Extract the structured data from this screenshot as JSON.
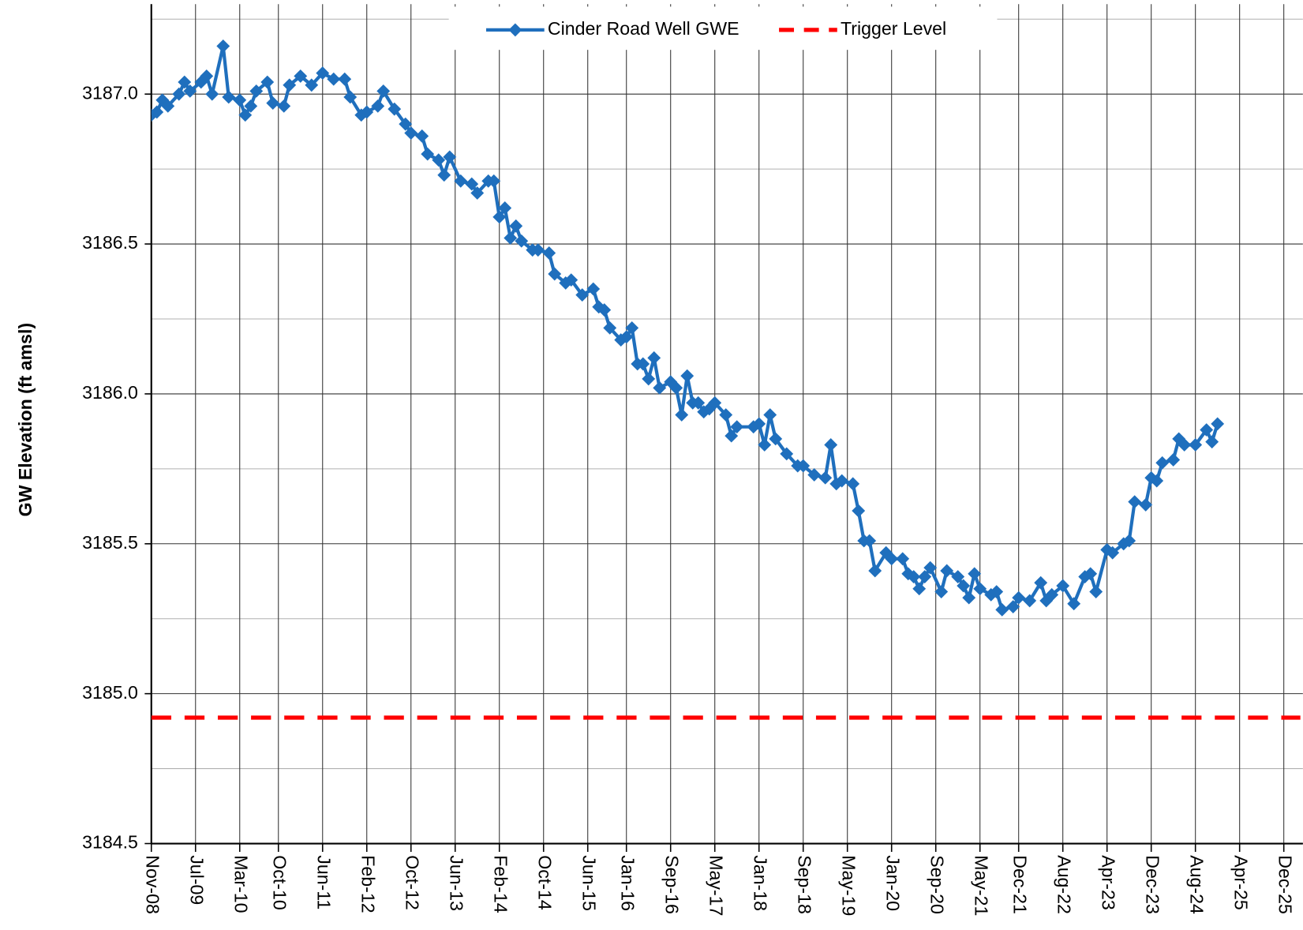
{
  "chart_data": {
    "type": "line",
    "y_label": "GW Elevation (ft amsl)",
    "ylim": [
      3184.5,
      3187.3
    ],
    "yticks": [
      {
        "value": 3184.5,
        "label": "3184.5"
      },
      {
        "value": 3185,
        "label": "3185.0"
      },
      {
        "value": 3185.5,
        "label": "3185.5"
      },
      {
        "value": 3186,
        "label": "3186.0"
      },
      {
        "value": 3186.5,
        "label": "3186.5"
      },
      {
        "value": 3187,
        "label": "3187.0"
      }
    ],
    "minor_yticks": [
      3184.75,
      3185.25,
      3185.75,
      3186.25,
      3186.75,
      3187.25
    ],
    "xlim": [
      "2008-11",
      "2026-03"
    ],
    "xticks": [
      {
        "value": "2008-11",
        "label": "Nov-08"
      },
      {
        "value": "2009-07",
        "label": "Jul-09"
      },
      {
        "value": "2010-03",
        "label": "Mar-10"
      },
      {
        "value": "2010-10",
        "label": "Oct-10"
      },
      {
        "value": "2011-06",
        "label": "Jun-11"
      },
      {
        "value": "2012-02",
        "label": "Feb-12"
      },
      {
        "value": "2012-10",
        "label": "Oct-12"
      },
      {
        "value": "2013-06",
        "label": "Jun-13"
      },
      {
        "value": "2014-02",
        "label": "Feb-14"
      },
      {
        "value": "2014-10",
        "label": "Oct-14"
      },
      {
        "value": "2015-06",
        "label": "Jun-15"
      },
      {
        "value": "2016-01",
        "label": "Jan-16"
      },
      {
        "value": "2016-09",
        "label": "Sep-16"
      },
      {
        "value": "2017-05",
        "label": "May-17"
      },
      {
        "value": "2018-01",
        "label": "Jan-18"
      },
      {
        "value": "2018-09",
        "label": "Sep-18"
      },
      {
        "value": "2019-05",
        "label": "May-19"
      },
      {
        "value": "2020-01",
        "label": "Jan-20"
      },
      {
        "value": "2020-09",
        "label": "Sep-20"
      },
      {
        "value": "2021-05",
        "label": "May-21"
      },
      {
        "value": "2021-12",
        "label": "Dec-21"
      },
      {
        "value": "2022-08",
        "label": "Aug-22"
      },
      {
        "value": "2023-04",
        "label": "Apr-23"
      },
      {
        "value": "2023-12",
        "label": "Dec-23"
      },
      {
        "value": "2024-08",
        "label": "Aug-24"
      },
      {
        "value": "2025-04",
        "label": "Apr-25"
      },
      {
        "value": "2025-12",
        "label": "Dec-25"
      }
    ],
    "grid": true,
    "legend": "top",
    "series": [
      {
        "name": "Cinder Road Well GWE",
        "color": "#1f6fbd",
        "marker": "diamond",
        "x": [
          "2008-11",
          "2008-12",
          "2009-01",
          "2009-02",
          "2009-04",
          "2009-05",
          "2009-06",
          "2009-08",
          "2009-09",
          "2009-10",
          "2009-12",
          "2010-01",
          "2010-03",
          "2010-04",
          "2010-05",
          "2010-06",
          "2010-08",
          "2010-09",
          "2010-11",
          "2010-12",
          "2011-02",
          "2011-04",
          "2011-06",
          "2011-08",
          "2011-10",
          "2011-11",
          "2012-01",
          "2012-02",
          "2012-04",
          "2012-05",
          "2012-07",
          "2012-09",
          "2012-10",
          "2012-12",
          "2013-01",
          "2013-03",
          "2013-04",
          "2013-05",
          "2013-07",
          "2013-09",
          "2013-10",
          "2013-12",
          "2014-01",
          "2014-02",
          "2014-03",
          "2014-04",
          "2014-05",
          "2014-06",
          "2014-08",
          "2014-09",
          "2014-11",
          "2014-12",
          "2015-02",
          "2015-03",
          "2015-05",
          "2015-07",
          "2015-08",
          "2015-09",
          "2015-10",
          "2015-12",
          "2016-01",
          "2016-02",
          "2016-03",
          "2016-04",
          "2016-05",
          "2016-06",
          "2016-07",
          "2016-09",
          "2016-10",
          "2016-11",
          "2016-12",
          "2017-01",
          "2017-02",
          "2017-03",
          "2017-04",
          "2017-05",
          "2017-07",
          "2017-08",
          "2017-09",
          "2017-12",
          "2018-01",
          "2018-02",
          "2018-03",
          "2018-04",
          "2018-06",
          "2018-08",
          "2018-09",
          "2018-11",
          "2019-01",
          "2019-02",
          "2019-03",
          "2019-04",
          "2019-06",
          "2019-07",
          "2019-08",
          "2019-09",
          "2019-10",
          "2019-12",
          "2020-01",
          "2020-03",
          "2020-04",
          "2020-05",
          "2020-06",
          "2020-07",
          "2020-08",
          "2020-10",
          "2020-11",
          "2021-01",
          "2021-02",
          "2021-03",
          "2021-04",
          "2021-05",
          "2021-07",
          "2021-08",
          "2021-09",
          "2021-11",
          "2021-12",
          "2022-02",
          "2022-04",
          "2022-05",
          "2022-06",
          "2022-08",
          "2022-10",
          "2022-12",
          "2023-01",
          "2023-02",
          "2023-04",
          "2023-05",
          "2023-07",
          "2023-08",
          "2023-09",
          "2023-11",
          "2023-12",
          "2024-01",
          "2024-02",
          "2024-04",
          "2024-05",
          "2024-06",
          "2024-08",
          "2024-10",
          "2024-11",
          "2024-12"
        ],
        "values": [
          3186.93,
          3186.94,
          3186.98,
          3186.96,
          3187.0,
          3187.04,
          3187.01,
          3187.04,
          3187.06,
          3187.0,
          3187.16,
          3186.99,
          3186.98,
          3186.93,
          3186.96,
          3187.01,
          3187.04,
          3186.97,
          3186.96,
          3187.03,
          3187.06,
          3187.03,
          3187.07,
          3187.05,
          3187.05,
          3186.99,
          3186.93,
          3186.94,
          3186.96,
          3187.01,
          3186.95,
          3186.9,
          3186.87,
          3186.86,
          3186.8,
          3186.78,
          3186.73,
          3186.79,
          3186.71,
          3186.7,
          3186.67,
          3186.71,
          3186.71,
          3186.59,
          3186.62,
          3186.52,
          3186.56,
          3186.51,
          3186.48,
          3186.48,
          3186.47,
          3186.4,
          3186.37,
          3186.38,
          3186.33,
          3186.35,
          3186.29,
          3186.28,
          3186.22,
          3186.18,
          3186.19,
          3186.22,
          3186.1,
          3186.1,
          3186.05,
          3186.12,
          3186.02,
          3186.04,
          3186.02,
          3185.93,
          3186.06,
          3185.97,
          3185.97,
          3185.94,
          3185.95,
          3185.97,
          3185.93,
          3185.86,
          3185.89,
          3185.89,
          3185.9,
          3185.83,
          3185.93,
          3185.85,
          3185.8,
          3185.76,
          3185.76,
          3185.73,
          3185.72,
          3185.83,
          3185.7,
          3185.71,
          3185.7,
          3185.61,
          3185.51,
          3185.51,
          3185.41,
          3185.47,
          3185.45,
          3185.45,
          3185.4,
          3185.39,
          3185.35,
          3185.39,
          3185.42,
          3185.34,
          3185.41,
          3185.39,
          3185.36,
          3185.32,
          3185.4,
          3185.35,
          3185.33,
          3185.34,
          3185.28,
          3185.29,
          3185.32,
          3185.31,
          3185.37,
          3185.31,
          3185.33,
          3185.36,
          3185.3,
          3185.39,
          3185.4,
          3185.34,
          3185.48,
          3185.47,
          3185.5,
          3185.51,
          3185.64,
          3185.63,
          3185.72,
          3185.71,
          3185.77,
          3185.78,
          3185.85,
          3185.83,
          3185.83,
          3185.88,
          3185.84,
          3185.9
        ]
      },
      {
        "name": "Trigger Level",
        "color": "#ff0000",
        "dashed": true,
        "x": [
          "2008-11",
          "2026-03"
        ],
        "values": [
          3184.92,
          3184.92
        ]
      }
    ]
  }
}
